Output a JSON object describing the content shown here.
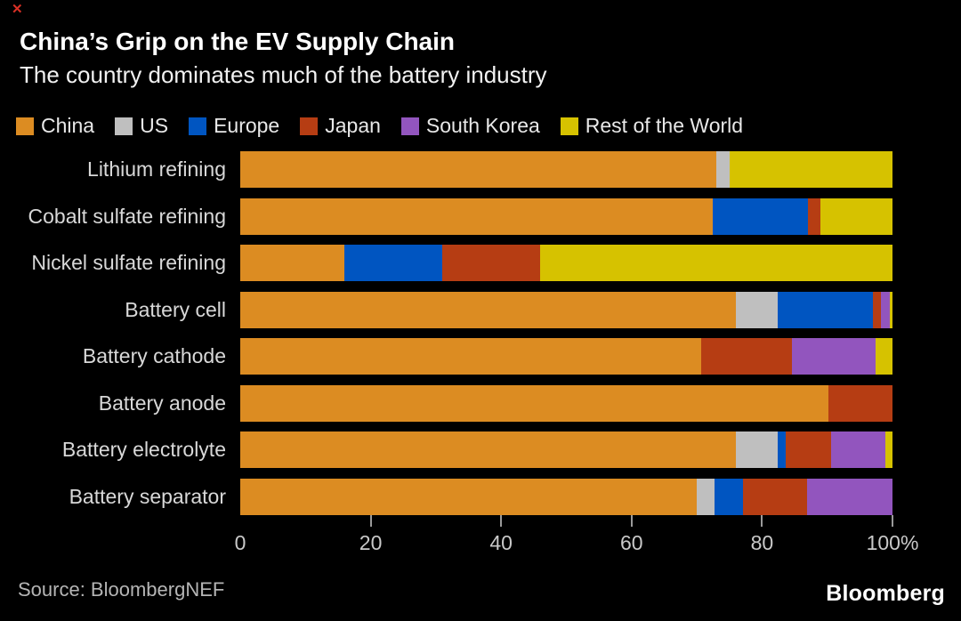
{
  "page": {
    "background": "#000000"
  },
  "corner_mark": "✕",
  "header": {
    "title": "China’s Grip on the EV Supply Chain",
    "subtitle": "The country dominates much of the battery industry"
  },
  "legend": [
    {
      "label": "China",
      "color": "#DC8C22"
    },
    {
      "label": "US",
      "color": "#BFBFBF"
    },
    {
      "label": "Europe",
      "color": "#0055C1"
    },
    {
      "label": "Japan",
      "color": "#B63D13"
    },
    {
      "label": "South Korea",
      "color": "#9255BE"
    },
    {
      "label": "Rest of the World",
      "color": "#D6C200"
    }
  ],
  "chart_data": {
    "type": "bar",
    "orientation": "horizontal-stacked",
    "unit": "percent share",
    "title": "China’s Grip on the EV Supply Chain",
    "xlabel": "",
    "ylabel": "",
    "xlim": [
      0,
      100
    ],
    "grid": false,
    "legend_position": "top",
    "categories": [
      "Lithium refining",
      "Cobalt sulfate refining",
      "Nickel sulfate refining",
      "Battery cell",
      "Battery cathode",
      "Battery anode",
      "Battery electrolyte",
      "Battery separator"
    ],
    "series": [
      {
        "name": "China",
        "color": "#DC8C22",
        "values": [
          73,
          72.5,
          16,
          76,
          70.7,
          90.2,
          76,
          70
        ]
      },
      {
        "name": "US",
        "color": "#BFBFBF",
        "values": [
          2,
          0,
          0,
          6.4,
          0,
          0,
          6.4,
          2.7
        ]
      },
      {
        "name": "Europe",
        "color": "#0055C1",
        "values": [
          0,
          14.5,
          15,
          14.6,
          0,
          0,
          1.2,
          4.4
        ]
      },
      {
        "name": "Japan",
        "color": "#B63D13",
        "values": [
          0,
          2,
          15,
          1.2,
          13.9,
          9.8,
          7,
          9.8
        ]
      },
      {
        "name": "South Korea",
        "color": "#9255BE",
        "values": [
          0,
          0,
          0,
          1.4,
          12.8,
          0,
          8.3,
          13.1
        ]
      },
      {
        "name": "Rest of the World",
        "color": "#D6C200",
        "values": [
          25,
          11,
          54,
          0.4,
          2.6,
          0,
          1.1,
          0
        ]
      }
    ],
    "xticks": [
      {
        "value": 0,
        "label": "0"
      },
      {
        "value": 20,
        "label": "20"
      },
      {
        "value": 40,
        "label": "40"
      },
      {
        "value": 60,
        "label": "60"
      },
      {
        "value": 80,
        "label": "80"
      },
      {
        "value": 100,
        "label": "100%"
      }
    ]
  },
  "footer": {
    "source": "Source: BloombergNEF",
    "brand": "Bloomberg"
  }
}
